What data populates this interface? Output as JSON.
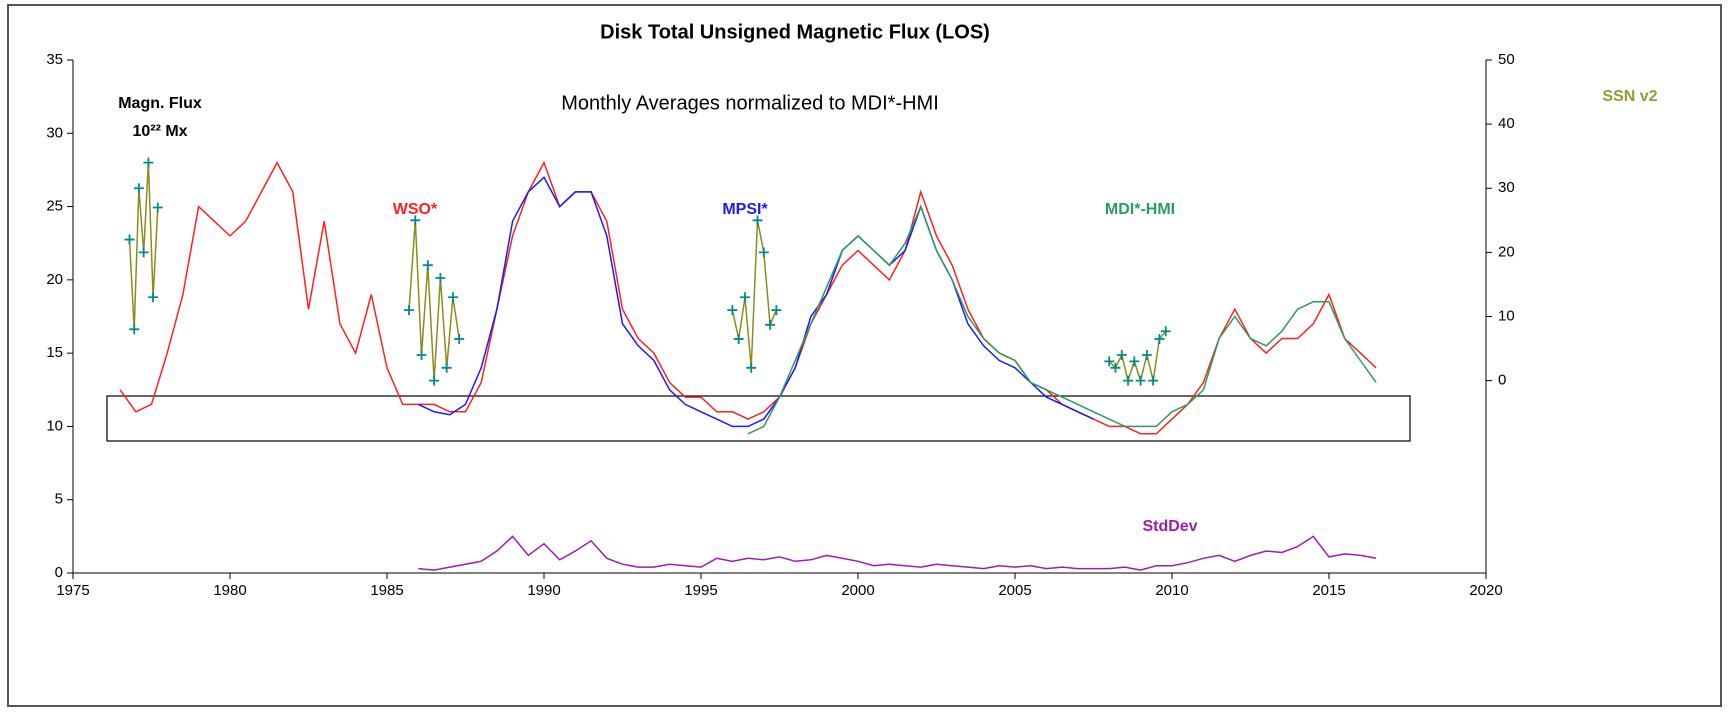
{
  "chart_data": {
    "type": "line",
    "title": "Disk Total Unsigned Magnetic Flux (LOS)",
    "subtitle": "Monthly Averages normalized to MDI*-HMI",
    "annotations": [
      "Magn. Flux",
      "10²² Mx"
    ],
    "x": [
      1976.5,
      1977,
      1977.5,
      1978,
      1978.5,
      1979,
      1979.5,
      1980,
      1980.5,
      1981,
      1981.5,
      1982,
      1982.5,
      1983,
      1983.5,
      1984,
      1984.5,
      1985,
      1985.5,
      1986,
      1986.5,
      1987,
      1987.5,
      1988,
      1988.5,
      1989,
      1989.5,
      1990,
      1990.5,
      1991,
      1991.5,
      1992,
      1992.5,
      1993,
      1993.5,
      1994,
      1994.5,
      1995,
      1995.5,
      1996,
      1996.5,
      1997,
      1997.5,
      1998,
      1998.5,
      1999,
      1999.5,
      2000,
      2000.5,
      2001,
      2001.5,
      2002,
      2002.5,
      2003,
      2003.5,
      2004,
      2004.5,
      2005,
      2005.5,
      2006,
      2006.5,
      2007,
      2007.5,
      2008,
      2008.5,
      2009,
      2009.5,
      2010,
      2010.5,
      2011,
      2011.5,
      2012,
      2012.5,
      2013,
      2013.5,
      2014,
      2014.5,
      2015,
      2015.5,
      2016,
      2016.5
    ],
    "xlim": [
      1975,
      2020
    ],
    "xticks": [
      1975,
      1980,
      1985,
      1990,
      1995,
      2000,
      2005,
      2010,
      2015,
      2020
    ],
    "ylim": [
      0,
      35
    ],
    "yticks": [
      0,
      5,
      10,
      15,
      20,
      25,
      30,
      35
    ],
    "y2lim": [
      -30,
      50
    ],
    "y2ticks": [
      0,
      10,
      20,
      30,
      40,
      50
    ],
    "grid": false,
    "series": [
      {
        "name": "WSO*",
        "color": "#ff2020",
        "values": [
          12.5,
          11,
          11.5,
          15,
          19,
          25,
          24,
          23,
          24,
          26,
          28,
          26,
          18,
          24,
          17,
          15,
          19,
          14,
          11.5,
          11.5,
          11.5,
          11,
          11,
          13,
          18,
          23,
          26,
          28,
          25,
          26,
          26,
          24,
          18,
          16,
          15,
          13,
          12,
          12,
          11,
          11,
          10.5,
          11,
          12,
          14,
          17,
          19,
          21,
          22,
          21,
          20,
          22,
          26,
          23,
          21,
          18,
          16,
          15,
          14.5,
          13,
          12.5,
          11.5,
          11,
          10.5,
          10,
          10,
          9.5,
          9.5,
          10.5,
          11.5,
          13,
          16,
          18,
          16,
          15,
          16,
          16,
          17,
          19,
          16,
          15,
          14
        ]
      },
      {
        "name": "MPSI*",
        "color": "#1a1aff",
        "values": [
          null,
          null,
          null,
          null,
          null,
          null,
          null,
          null,
          null,
          null,
          null,
          null,
          null,
          null,
          null,
          null,
          null,
          null,
          null,
          11.5,
          11,
          10.8,
          11.5,
          14,
          18,
          24,
          26,
          27,
          25,
          26,
          26,
          23,
          17,
          15.5,
          14.5,
          12.5,
          11.5,
          11,
          10.5,
          10,
          10,
          10.5,
          12,
          14,
          17.5,
          19,
          22,
          23,
          22,
          21,
          22,
          25,
          22,
          20,
          17,
          15.5,
          14.5,
          14,
          13,
          12,
          11.5,
          11,
          10.5,
          null,
          null,
          null,
          null,
          null,
          null,
          null,
          null,
          null,
          null,
          null,
          null,
          null,
          null,
          null,
          null,
          null,
          null
        ]
      },
      {
        "name": "MDI*-HMI",
        "color": "#2e9b5e",
        "values": [
          null,
          null,
          null,
          null,
          null,
          null,
          null,
          null,
          null,
          null,
          null,
          null,
          null,
          null,
          null,
          null,
          null,
          null,
          null,
          null,
          null,
          null,
          null,
          null,
          null,
          null,
          null,
          null,
          null,
          null,
          null,
          null,
          null,
          null,
          null,
          null,
          null,
          null,
          null,
          null,
          9.5,
          10,
          12,
          14.5,
          17,
          19.5,
          22,
          23,
          22,
          21,
          22.5,
          25,
          22,
          20,
          17.5,
          16,
          15,
          14.5,
          13,
          12.5,
          12,
          11.5,
          11,
          10.5,
          10,
          10,
          10,
          11,
          11.5,
          12.5,
          16,
          17.5,
          16,
          15.5,
          16.5,
          18,
          18.5,
          18.5,
          16,
          14.5,
          13
        ]
      },
      {
        "name": "StdDev",
        "color": "#9b1fa8",
        "values": [
          null,
          null,
          null,
          null,
          null,
          null,
          null,
          null,
          null,
          null,
          null,
          null,
          null,
          null,
          null,
          null,
          null,
          null,
          null,
          0.3,
          0.2,
          0.4,
          0.6,
          0.8,
          1.5,
          2.5,
          1.2,
          2,
          0.9,
          1.5,
          2.2,
          1,
          0.6,
          0.4,
          0.4,
          0.6,
          0.5,
          0.4,
          1,
          0.8,
          1,
          0.9,
          1.1,
          0.8,
          0.9,
          1.2,
          1,
          0.8,
          0.5,
          0.6,
          0.5,
          0.4,
          0.6,
          0.5,
          0.4,
          0.3,
          0.5,
          0.4,
          0.5,
          0.3,
          0.4,
          0.3,
          0.3,
          0.3,
          0.4,
          0.2,
          0.5,
          0.5,
          0.7,
          1,
          1.2,
          0.8,
          1.2,
          1.5,
          1.4,
          1.8,
          2.5,
          1.1,
          1.3,
          1.2,
          1.0
        ]
      },
      {
        "name": "SSN v2",
        "color": "#8c8c1a",
        "marker_color": "#008b8b",
        "axis": "y2",
        "x": [
          1976.8,
          1976.95,
          1977.1,
          1977.25,
          1977.4,
          1977.55,
          1977.7,
          null,
          1985.7,
          1985.9,
          1986.1,
          1986.3,
          1986.5,
          1986.7,
          1986.9,
          1987.1,
          1987.3,
          null,
          1996,
          1996.2,
          1996.4,
          1996.6,
          1996.8,
          1997,
          1997.2,
          1997.4,
          null,
          2008,
          2008.2,
          2008.4,
          2008.6,
          2008.8,
          2009,
          2009.2,
          2009.4,
          2009.6,
          2009.8
        ],
        "values": [
          22,
          8,
          30,
          20,
          34,
          13,
          27,
          null,
          11,
          25,
          4,
          18,
          0,
          16,
          2,
          13,
          6.5,
          null,
          11,
          6.5,
          13,
          2,
          25,
          20,
          8.7,
          11,
          null,
          3,
          2,
          4,
          0,
          3,
          0,
          4,
          0,
          6.5,
          7.7
        ]
      }
    ]
  }
}
